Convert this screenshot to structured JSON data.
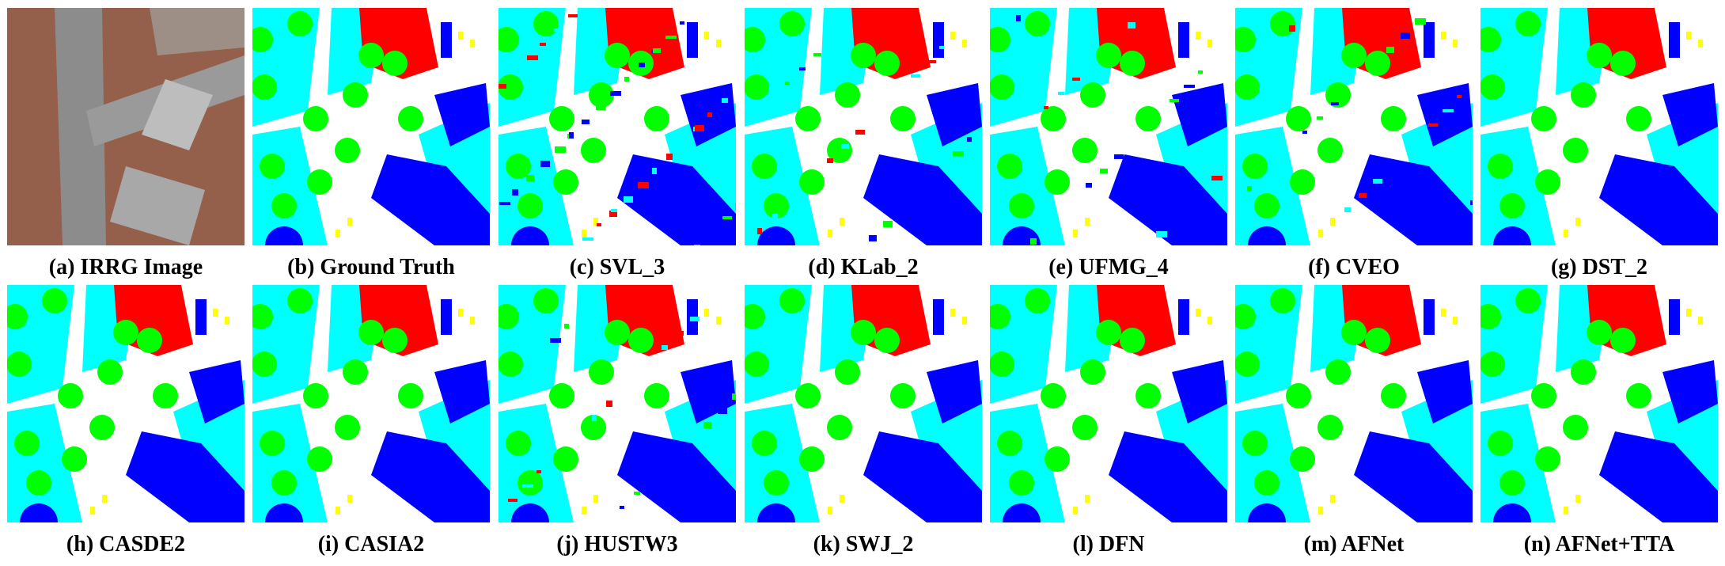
{
  "figure": {
    "panels": [
      {
        "label": "(a) IRRG Image",
        "kind": "photo"
      },
      {
        "label": "(b) Ground Truth",
        "kind": "map",
        "quality": "gt"
      },
      {
        "label": "(c) SVL_3",
        "kind": "map",
        "quality": "noisy"
      },
      {
        "label": "(d) KLab_2",
        "kind": "map",
        "quality": "medium"
      },
      {
        "label": "(e) UFMG_4",
        "kind": "map",
        "quality": "medium"
      },
      {
        "label": "(f) CVEO",
        "kind": "map",
        "quality": "medium"
      },
      {
        "label": "(g) DST_2",
        "kind": "map",
        "quality": "good"
      },
      {
        "label": "(h) CASDE2",
        "kind": "map",
        "quality": "good"
      },
      {
        "label": "(i) CASIA2",
        "kind": "map",
        "quality": "good"
      },
      {
        "label": "(j) HUSTW3",
        "kind": "map",
        "quality": "medium"
      },
      {
        "label": "(k) SWJ_2",
        "kind": "map",
        "quality": "good"
      },
      {
        "label": "(l) DFN",
        "kind": "map",
        "quality": "good"
      },
      {
        "label": "(m) AFNet",
        "kind": "map",
        "quality": "good"
      },
      {
        "label": "(n) AFNet+TTA",
        "kind": "map",
        "quality": "good"
      }
    ],
    "class_colors": {
      "impervious_surface": "#ffffff",
      "building": "#0000ff",
      "low_vegetation": "#00ffff",
      "tree": "#00ff00",
      "car": "#ffff00",
      "clutter": "#ff0000"
    }
  }
}
